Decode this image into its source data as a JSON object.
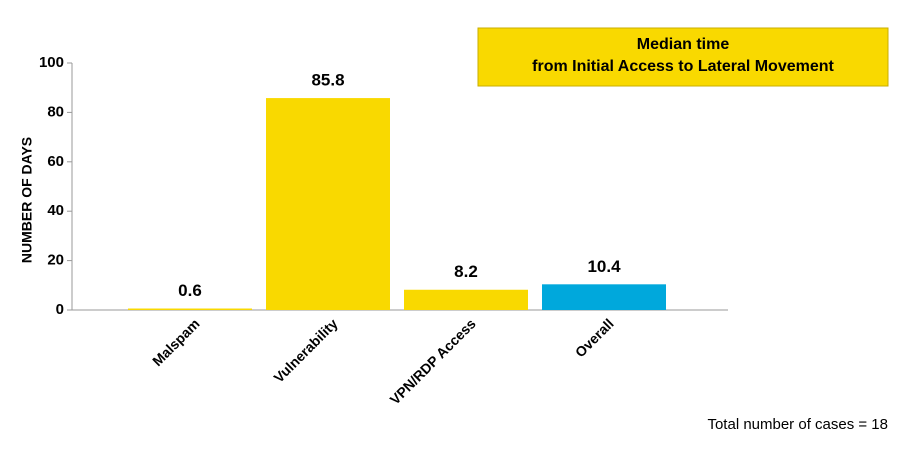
{
  "chart_data": {
    "type": "bar",
    "title": [
      "Median time",
      "from Initial Access to Lateral Movement"
    ],
    "y_label": "NUMBER OF DAYS",
    "note": "Total number of cases = 18",
    "categories": [
      "Malspam",
      "Vulnerability",
      "VPN/RDP Access",
      "Overall"
    ],
    "values": [
      0.6,
      85.8,
      8.2,
      10.4
    ],
    "colors": [
      "#f9d900",
      "#f9d900",
      "#f9d900",
      "#00a8dc"
    ],
    "ylim": [
      0,
      100
    ],
    "yticks": [
      0,
      20,
      40,
      60,
      80,
      100
    ],
    "grid": false
  }
}
